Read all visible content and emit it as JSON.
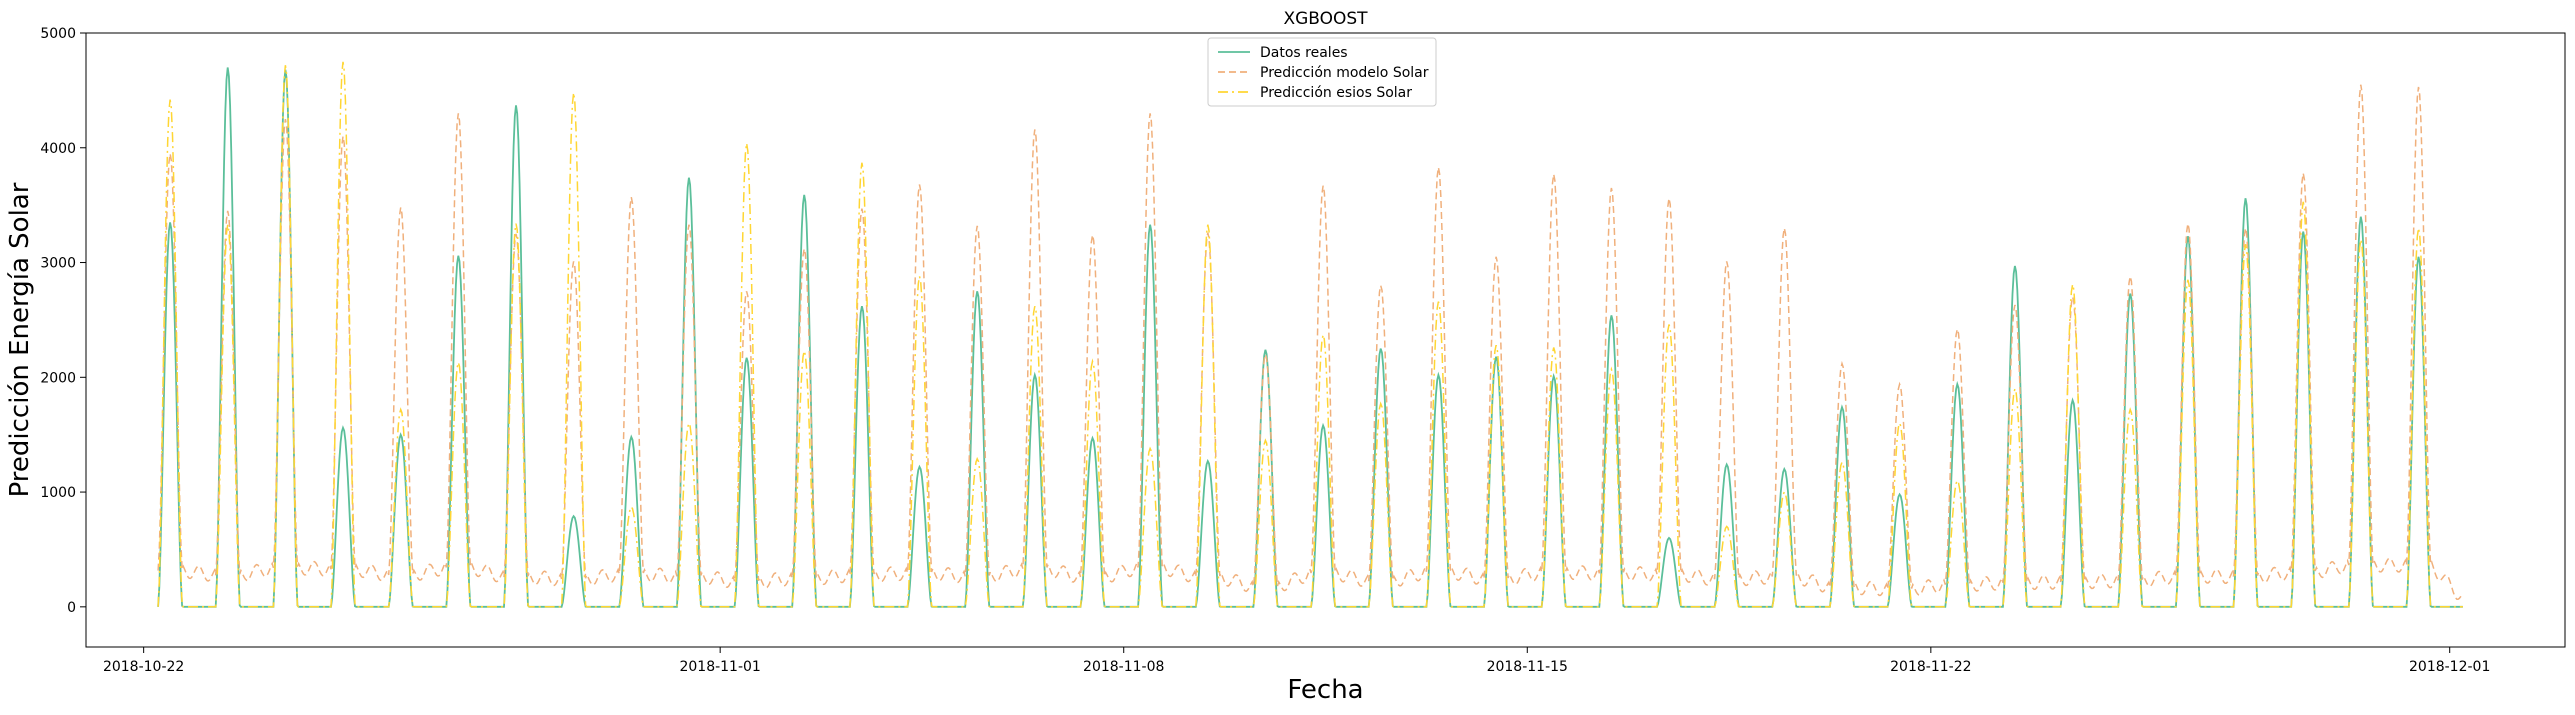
{
  "chart_data": {
    "type": "line",
    "title": "XGBOOST",
    "xlabel": "Fecha",
    "ylabel": "Predicción Energía Solar",
    "xlim": [
      "2018-10-21",
      "2018-12-03"
    ],
    "ylim": [
      -350,
      5000
    ],
    "yticks": [
      0,
      1000,
      2000,
      3000,
      4000,
      5000
    ],
    "xticks": [
      "2018-10-22",
      "2018-11-01",
      "2018-11-08",
      "2018-11-15",
      "2018-11-22",
      "2018-12-01"
    ],
    "grid": false,
    "legend_position": "top-center",
    "series_start": "2018-10-22",
    "series": [
      {
        "name": "Datos reales",
        "color": "#5bbf9a",
        "style": "solid",
        "daily_peaks": [
          3350,
          4700,
          4680,
          1560,
          1500,
          3060,
          4370,
          790,
          1480,
          3740,
          2170,
          3590,
          2620,
          1220,
          2750,
          2020,
          1470,
          3330,
          1270,
          2240,
          1580,
          2250,
          2020,
          2180,
          2010,
          2540,
          600,
          1240,
          1200,
          1740,
          980,
          1940,
          2970,
          1800,
          2730,
          3230,
          3560,
          3270,
          3400,
          3050
        ]
      },
      {
        "name": "Predicción modelo Solar",
        "color": "#f0b07c",
        "style": "dashed",
        "daily_peaks": [
          3950,
          3450,
          4250,
          4100,
          3480,
          4300,
          3250,
          3010,
          3570,
          3330,
          2750,
          3120,
          3470,
          3680,
          3320,
          4160,
          3240,
          4300,
          3260,
          2200,
          3670,
          2800,
          3830,
          3050,
          3770,
          3650,
          3560,
          3010,
          3300,
          2120,
          1940,
          2420,
          2630,
          2700,
          2880,
          3340,
          3300,
          3780,
          4550,
          4530
        ]
      },
      {
        "name": "Predicción esios Solar",
        "color": "#ffd633",
        "style": "dashdot",
        "daily_peaks": [
          4420,
          3330,
          4720,
          4750,
          1720,
          2130,
          3340,
          4480,
          870,
          1600,
          4040,
          2230,
          3870,
          2880,
          1290,
          2620,
          2140,
          1380,
          3330,
          1450,
          2370,
          1770,
          2660,
          2280,
          2260,
          2070,
          2460,
          700,
          1000,
          1260,
          1600,
          1100,
          1900,
          2810,
          1720,
          2850,
          3160,
          3530,
          3200,
          3300
        ]
      }
    ]
  }
}
